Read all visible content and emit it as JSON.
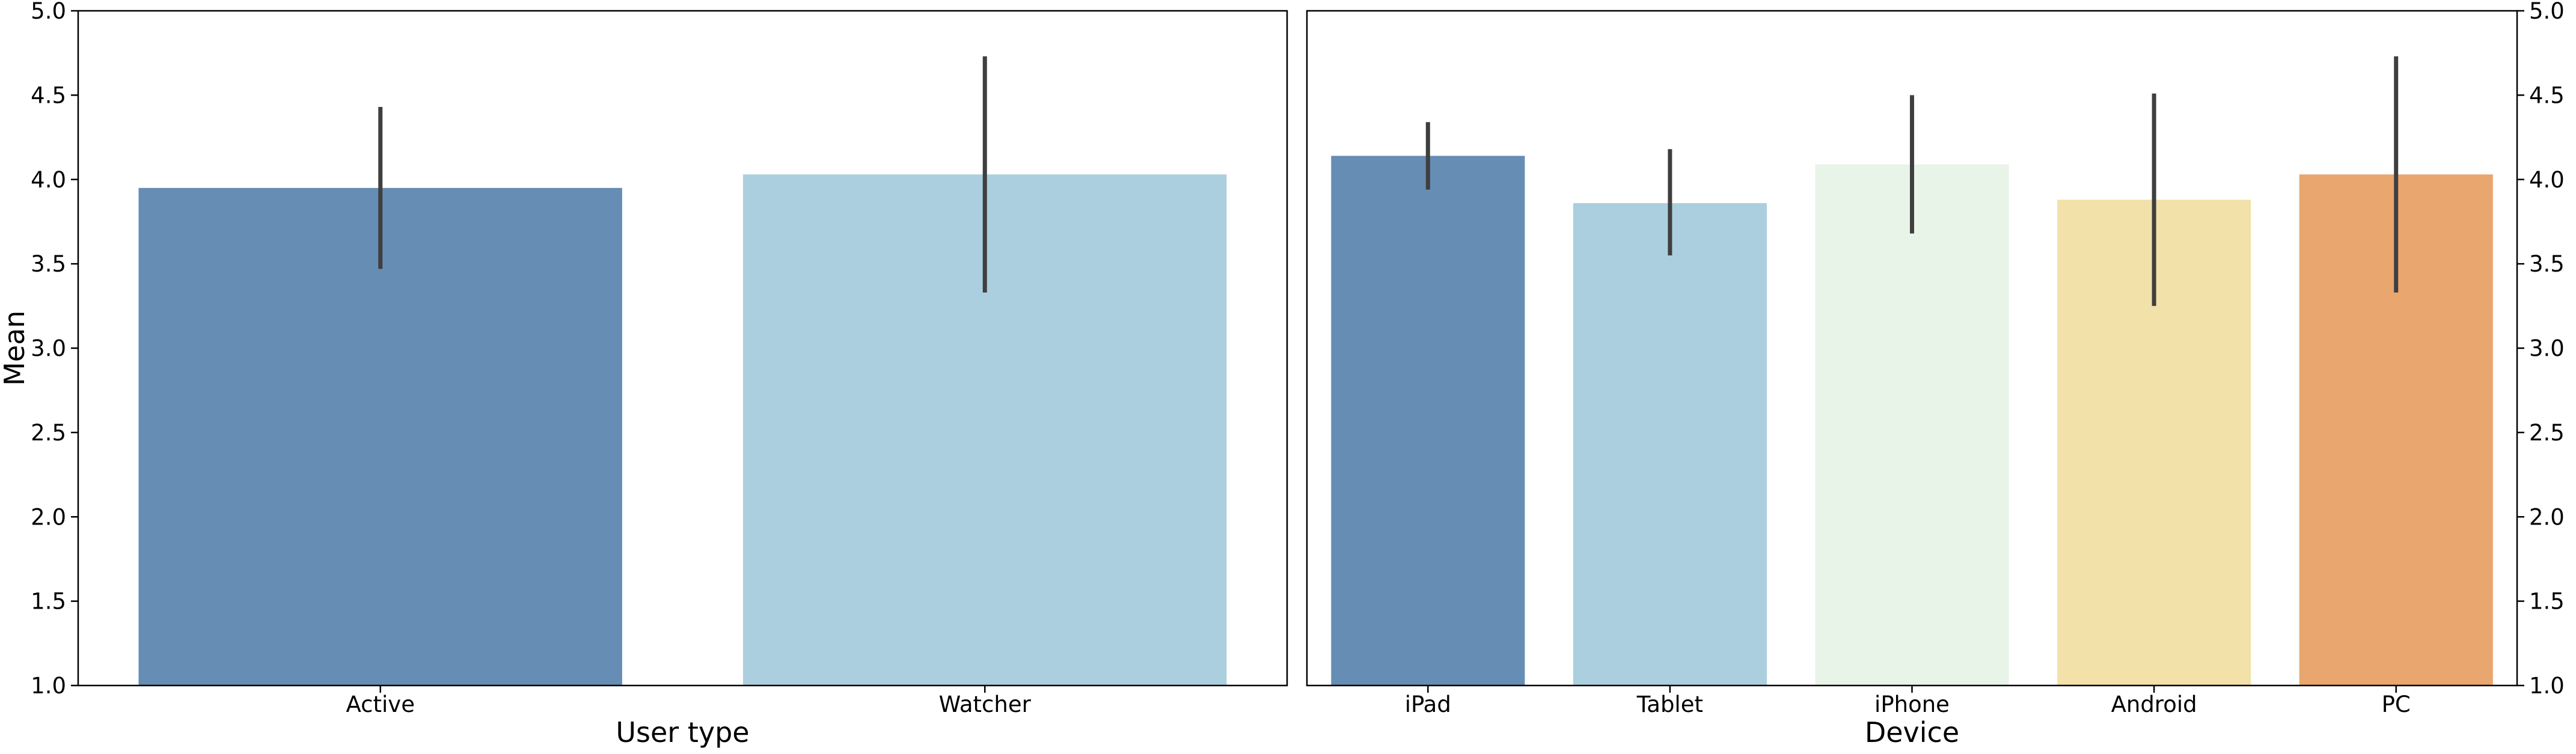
{
  "chart_data": [
    {
      "type": "bar",
      "xlabel": "User type",
      "ylabel": "Mean",
      "ylim": [
        1.0,
        5.0
      ],
      "yticks": [
        "1.0",
        "1.5",
        "2.0",
        "2.5",
        "3.0",
        "3.5",
        "4.0",
        "4.5",
        "5.0"
      ],
      "ytick_side": "left",
      "grid": false,
      "categories": [
        "Active",
        "Watcher"
      ],
      "values": [
        3.95,
        4.03
      ],
      "error_low": [
        3.47,
        3.33
      ],
      "error_high": [
        4.43,
        4.73
      ],
      "colors": [
        "#668DB4",
        "#ABCFDE"
      ]
    },
    {
      "type": "bar",
      "xlabel": "Device",
      "ylabel": "",
      "ylim": [
        1.0,
        5.0
      ],
      "yticks": [
        "1.0",
        "1.5",
        "2.0",
        "2.5",
        "3.0",
        "3.5",
        "4.0",
        "4.5",
        "5.0"
      ],
      "ytick_side": "right",
      "grid": false,
      "categories": [
        "iPad",
        "Tablet",
        "iPhone",
        "Android",
        "PC"
      ],
      "values": [
        4.14,
        3.86,
        4.09,
        3.88,
        4.03
      ],
      "error_low": [
        3.94,
        3.55,
        3.68,
        3.25,
        3.33
      ],
      "error_high": [
        4.34,
        4.18,
        4.5,
        4.51,
        4.73
      ],
      "colors": [
        "#668DB4",
        "#ABCFDE",
        "#E8F4E8",
        "#F2E1A8",
        "#E9A66E"
      ]
    }
  ]
}
